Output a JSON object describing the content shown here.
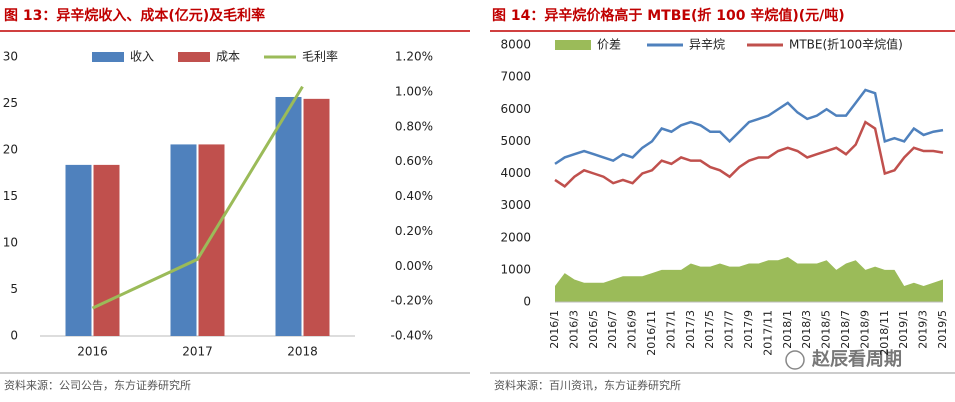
{
  "chart_data": [
    {
      "type": "bar",
      "title": "图 13：异辛烷收入、成本(亿元)及毛利率",
      "source": "资料来源：公司公告，东方证券研究所",
      "categories": [
        "2016",
        "2017",
        "2018"
      ],
      "series": [
        {
          "name": "收入",
          "color": "#4f81bd",
          "values": [
            18.4,
            20.6,
            25.7
          ]
        },
        {
          "name": "成本",
          "color": "#c0504d",
          "values": [
            18.4,
            20.6,
            25.5
          ]
        },
        {
          "name": "毛利率",
          "color": "#9bbb59",
          "type": "line",
          "axis": "y2",
          "values": [
            -0.24,
            0.04,
            1.03
          ]
        }
      ],
      "ylim": [
        0,
        30
      ],
      "yticks": [
        0,
        5,
        10,
        15,
        20,
        25,
        30
      ],
      "y2lim": [
        -0.4,
        1.2
      ],
      "y2ticks": [
        {
          "value": -0.4,
          "label": "-0.40%"
        },
        {
          "value": -0.2,
          "label": "-0.20%"
        },
        {
          "value": 0,
          "label": "0.00%"
        },
        {
          "value": 0.2,
          "label": "0.20%"
        },
        {
          "value": 0.4,
          "label": "0.40%"
        },
        {
          "value": 0.6,
          "label": "0.60%"
        },
        {
          "value": 0.8,
          "label": "0.80%"
        },
        {
          "value": 1.0,
          "label": "1.00%"
        },
        {
          "value": 1.2,
          "label": "1.20%"
        }
      ]
    },
    {
      "type": "line",
      "title": "图 14：异辛烷价格高于 MTBE(折 100 辛烷值)(元/吨)",
      "source": "资料来源：百川资讯，东方证券研究所",
      "categories": [
        "2016/1",
        null,
        "2016/3",
        null,
        "2016/5",
        null,
        "2016/7",
        null,
        "2016/9",
        null,
        "2016/11",
        null,
        "2017/1",
        null,
        "2017/3",
        null,
        "2017/5",
        null,
        "2017/7",
        null,
        "2017/9",
        null,
        "2017/11",
        null,
        "2018/1",
        null,
        "2018/3",
        null,
        "2018/5",
        null,
        "2018/7",
        null,
        "2018/9",
        null,
        "2018/11",
        null,
        "2019/1",
        null,
        "2019/3",
        null,
        "2019/5"
      ],
      "series": [
        {
          "name": "价差",
          "color": "#9bbb59",
          "type": "area",
          "values": [
            500,
            900,
            700,
            600,
            600,
            600,
            700,
            800,
            800,
            800,
            900,
            1000,
            1000,
            1000,
            1200,
            1100,
            1100,
            1200,
            1100,
            1100,
            1200,
            1200,
            1300,
            1300,
            1400,
            1200,
            1200,
            1200,
            1300,
            1000,
            1200,
            1300,
            1000,
            1100,
            1000,
            1000,
            500,
            600,
            500,
            600,
            700
          ]
        },
        {
          "name": "异辛烷",
          "color": "#4f81bd",
          "values": [
            4300,
            4500,
            4600,
            4700,
            4600,
            4500,
            4400,
            4600,
            4500,
            4800,
            5000,
            5400,
            5300,
            5500,
            5600,
            5500,
            5300,
            5300,
            5000,
            5300,
            5600,
            5700,
            5800,
            6000,
            6200,
            5900,
            5700,
            5800,
            6000,
            5800,
            5800,
            6200,
            6600,
            6500,
            5000,
            5100,
            5000,
            5400,
            5200,
            5300,
            5350
          ]
        },
        {
          "name": "MTBE(折100辛烷值)",
          "color": "#c0504d",
          "values": [
            3800,
            3600,
            3900,
            4100,
            4000,
            3900,
            3700,
            3800,
            3700,
            4000,
            4100,
            4400,
            4300,
            4500,
            4400,
            4400,
            4200,
            4100,
            3900,
            4200,
            4400,
            4500,
            4500,
            4700,
            4800,
            4700,
            4500,
            4600,
            4700,
            4800,
            4600,
            4900,
            5600,
            5400,
            4000,
            4100,
            4500,
            4800,
            4700,
            4700,
            4650
          ]
        }
      ],
      "ylim": [
        0,
        8000
      ],
      "yticks": [
        0,
        1000,
        2000,
        3000,
        4000,
        5000,
        6000,
        7000,
        8000
      ]
    }
  ],
  "watermark": "赵辰看周期"
}
